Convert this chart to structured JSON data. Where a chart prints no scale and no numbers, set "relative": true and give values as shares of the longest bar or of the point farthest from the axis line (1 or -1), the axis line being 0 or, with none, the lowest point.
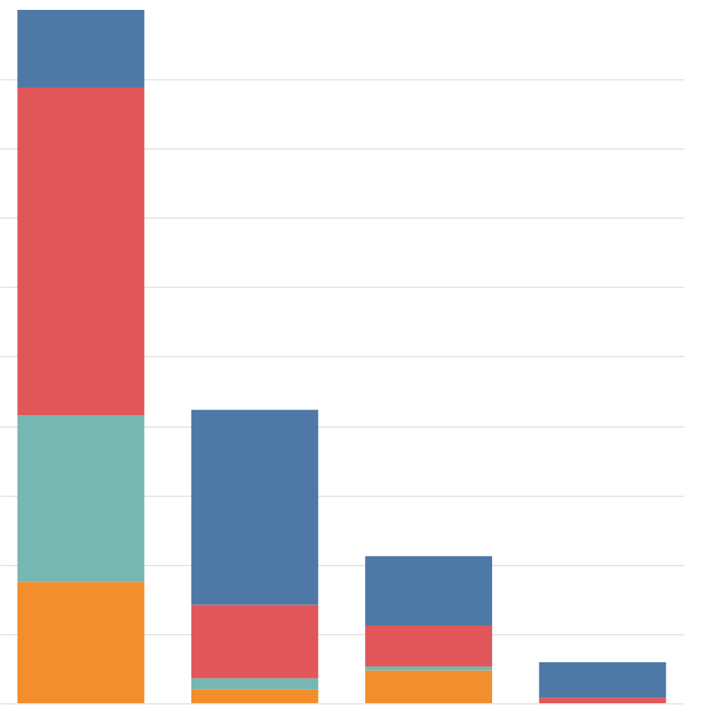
{
  "chart_data": {
    "type": "bar",
    "stacked": true,
    "relative": true,
    "grid": "y",
    "categories": [
      null,
      null,
      null,
      null
    ],
    "series": [
      {
        "color": "#f28e2b",
        "values": [
          0.175,
          0.02,
          0.047,
          0
        ]
      },
      {
        "color": "#76b7b2",
        "values": [
          0.24,
          0.016,
          0.006,
          0
        ]
      },
      {
        "color": "#e15759",
        "values": [
          0.473,
          0.106,
          0.059,
          0.008
        ]
      },
      {
        "color": "#4e79a7",
        "values": [
          0.112,
          0.281,
          0.1,
          0.051
        ]
      }
    ]
  }
}
